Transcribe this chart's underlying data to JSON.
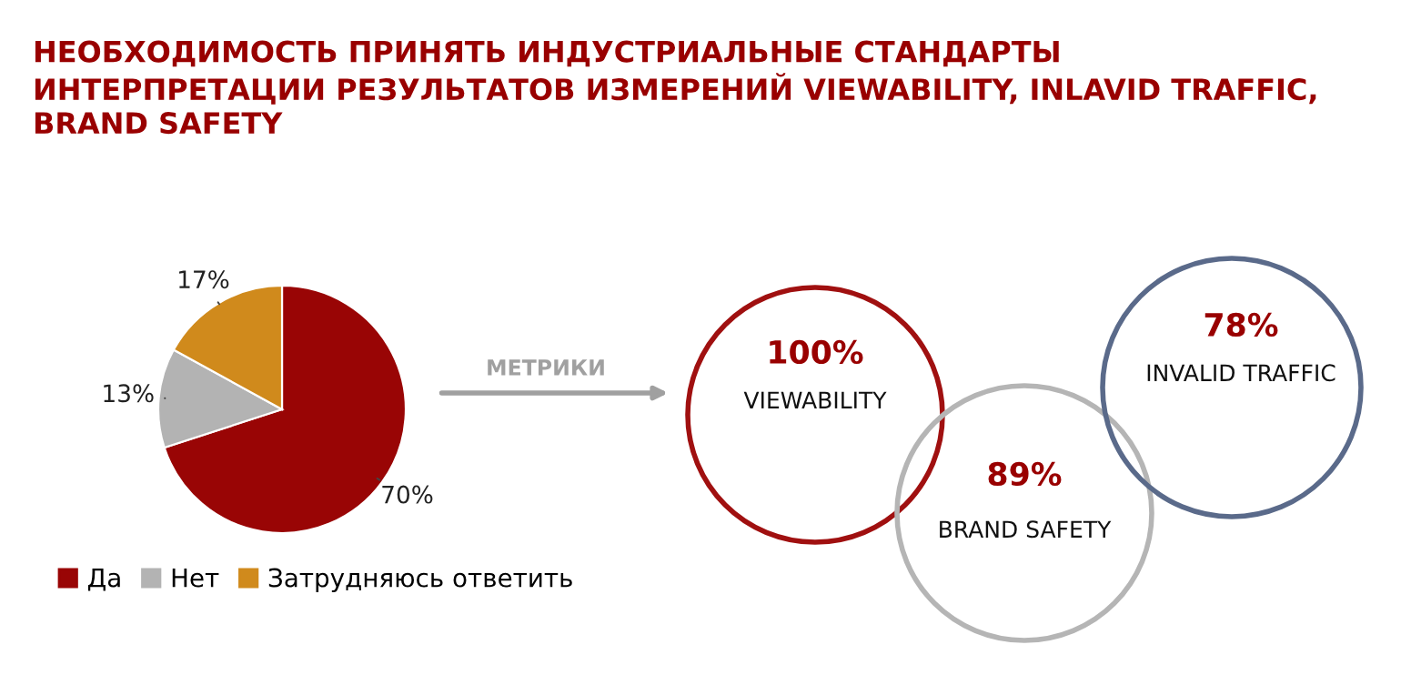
{
  "chart_data": [
    {
      "type": "pie",
      "title": "НЕОБХОДИМОСТЬ ПРИНЯТЬ ИНДУСТРИАЛЬНЫЕ СТАНДАРТЫ\nИНТЕРПРЕТАЦИИ РЕЗУЛЬТАТОВ ИЗМЕРЕНИЙ VIEWABILITY, INLAVID TRAFFIC,\nBRAND SAFETY",
      "categories": [
        "Да",
        "Нет",
        "Затрудняюсь ответить"
      ],
      "values": [
        70,
        13,
        17
      ],
      "value_labels": [
        "70%",
        "13%",
        "17%"
      ],
      "colors": [
        "#990505",
        "#b3b3b3",
        "#d08a1c"
      ],
      "legend": "bottom"
    },
    {
      "type": "other",
      "annotations": [
        "МЕТРИКИ"
      ],
      "categories": [
        "VIEWABILITY",
        "BRAND SAFETY",
        "INVALID TRAFFIC"
      ],
      "values": [
        100,
        89,
        78
      ],
      "value_labels": [
        "100%",
        "89%",
        "78%"
      ],
      "colors": [
        "#a01010",
        "#b5b5b5",
        "#5a6a8a"
      ]
    }
  ]
}
